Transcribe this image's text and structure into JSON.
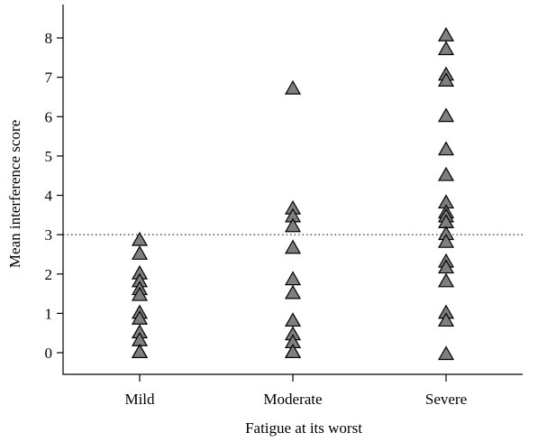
{
  "chart_data": {
    "type": "scatter",
    "xlabel": "Fatigue at its worst",
    "ylabel": "Mean interference score",
    "categories": [
      "Mild",
      "Moderate",
      "Severe"
    ],
    "y_ticks": [
      0,
      1,
      2,
      3,
      4,
      5,
      6,
      7,
      8
    ],
    "ylim": [
      -0.55,
      8.85
    ],
    "reference_line_y": 3,
    "marker": {
      "shape": "triangle",
      "fill": "#7f7f7f",
      "stroke": "#000000"
    },
    "points": {
      "Mild": [
        2.85,
        2.5,
        2.0,
        1.8,
        1.6,
        1.45,
        1.0,
        0.85,
        0.5,
        0.3,
        0.0,
        0.0
      ],
      "Moderate": [
        6.7,
        3.65,
        3.45,
        3.2,
        2.65,
        1.85,
        1.5,
        0.8,
        0.45,
        0.25,
        0.0,
        0.0
      ],
      "Severe": [
        8.05,
        7.7,
        7.05,
        6.9,
        6.0,
        5.15,
        4.5,
        3.8,
        3.55,
        3.45,
        3.3,
        3.0,
        2.8,
        2.3,
        2.15,
        1.8,
        1.0,
        0.8,
        -0.05
      ]
    },
    "grid": false,
    "legend": "none"
  }
}
